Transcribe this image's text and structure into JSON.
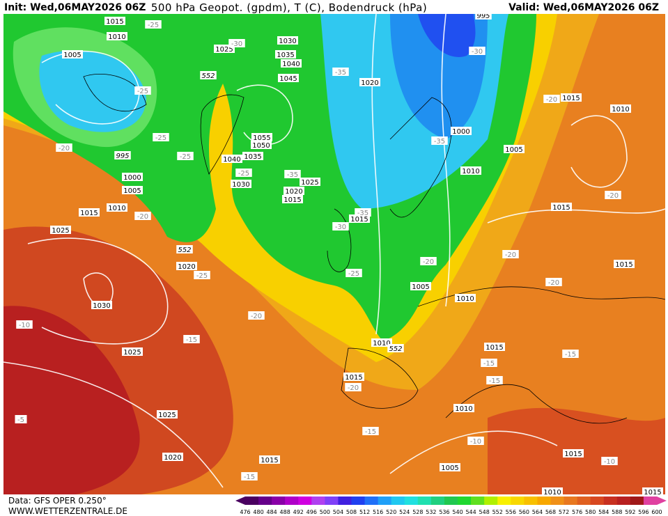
{
  "header": {
    "init": "Init: Wed,06MAY2026 06Z",
    "title": "500 hPa Geopot. (gpdm), T (C), Bodendruck (hPa)",
    "valid": "Valid: Wed,06MAY2026 06Z"
  },
  "footer": {
    "source": "Data: GFS OPER 0.250°",
    "site": "WWW.WETTERZENTRALE.DE"
  },
  "colorbar": {
    "labels": [
      476,
      480,
      484,
      488,
      492,
      496,
      500,
      504,
      508,
      512,
      516,
      520,
      524,
      528,
      532,
      536,
      540,
      544,
      548,
      552,
      556,
      560,
      564,
      568,
      572,
      576,
      580,
      584,
      588,
      592,
      596,
      600
    ],
    "colors": [
      "#4a0060",
      "#66008a",
      "#8a00a8",
      "#b000c8",
      "#d000e0",
      "#b040f0",
      "#8040f8",
      "#4020e0",
      "#2040f0",
      "#2070f8",
      "#20a0f8",
      "#20c8f0",
      "#20e0e0",
      "#20e0b0",
      "#20d080",
      "#20c850",
      "#20d830",
      "#60e020",
      "#b0f000",
      "#f8f000",
      "#f8d800",
      "#f8c000",
      "#f8a800",
      "#f09018",
      "#e87820",
      "#e06020",
      "#d84820",
      "#c83020",
      "#b82020",
      "#a01818",
      "#e040a0"
    ]
  },
  "map": {
    "labels": [
      "1015",
      "1010",
      "1005",
      "995",
      "1000",
      "1005",
      "1015",
      "1010",
      "1025",
      "1020",
      "1030",
      "1025",
      "1025",
      "1020",
      "1015",
      "1030",
      "1025",
      "1035",
      "1040",
      "1045",
      "1055",
      "1050",
      "1035",
      "1040",
      "1030",
      "1020",
      "1025",
      "1015",
      "1020",
      "1015",
      "1000",
      "1005",
      "1010",
      "1015",
      "1010",
      "1015",
      "1015",
      "1005",
      "1010",
      "1010",
      "1015",
      "1015",
      "1010",
      "1005",
      "1015",
      "1010",
      "1015",
      "995",
      "-25",
      "-25",
      "-25",
      "-20",
      "-25",
      "-20",
      "-30",
      "-35",
      "-25",
      "-35",
      "-30",
      "-35",
      "-20",
      "-20",
      "-35",
      "-30",
      "-25",
      "-20",
      "-20",
      "-20",
      "-25",
      "-20",
      "-15",
      "-10",
      "-20",
      "-15",
      "-15",
      "-15",
      "-15",
      "-10",
      "-10",
      "-15",
      "-5",
      "552",
      "552",
      "552"
    ]
  }
}
